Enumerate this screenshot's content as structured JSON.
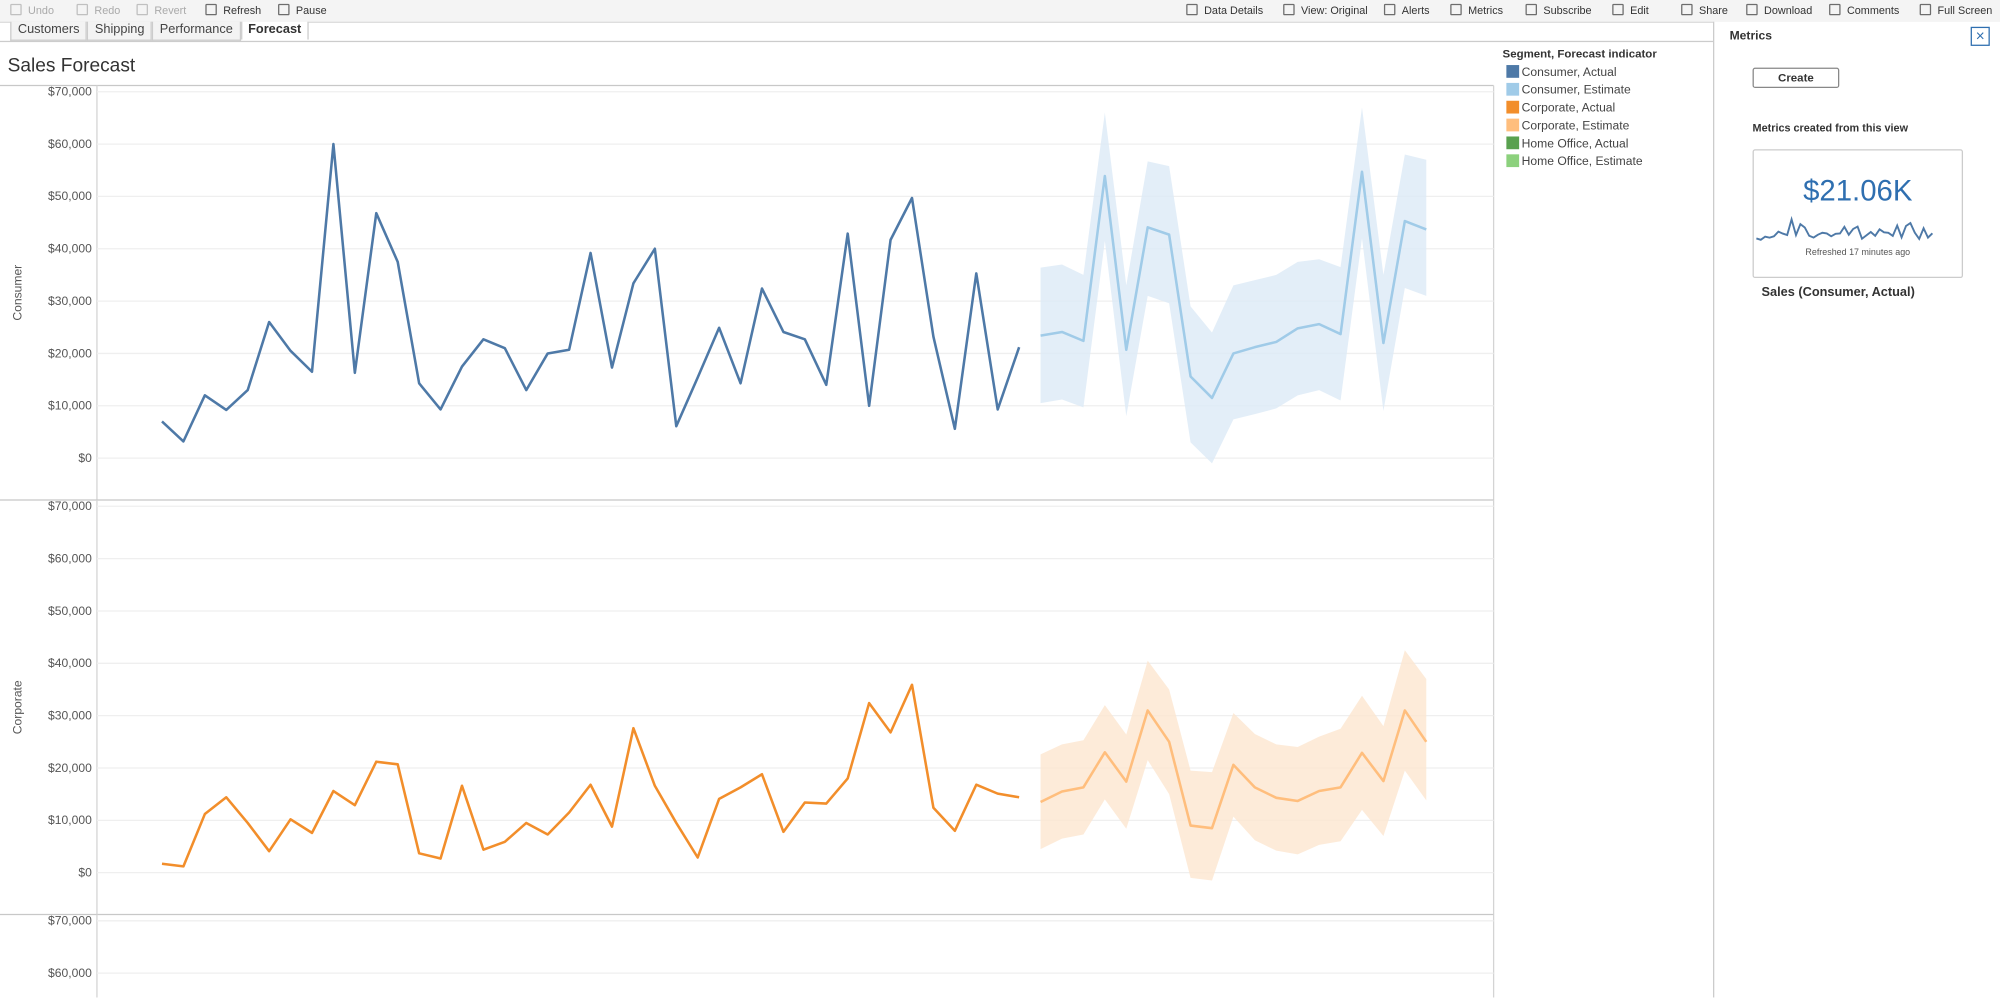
{
  "toolbar": {
    "left": [
      "Undo",
      "Redo",
      "Revert",
      "Refresh",
      "Pause"
    ],
    "right": [
      "Data Details",
      "View: Original",
      "Alerts",
      "Metrics",
      "Subscribe",
      "Edit",
      "Share",
      "Download",
      "Comments",
      "Full Screen"
    ]
  },
  "tabs": [
    "Customers",
    "Shipping",
    "Performance",
    "Forecast"
  ],
  "legend": {
    "title": "Segment, Forecast indicator",
    "items": [
      {
        "label": "Consumer, Actual",
        "color": "#4e79a7"
      },
      {
        "label": "Consumer, Estimate",
        "color": "#a0cbe8"
      },
      {
        "label": "Corporate, Actual",
        "color": "#f28e2b"
      },
      {
        "label": "Corporate, Estimate",
        "color": "#ffbe7d"
      },
      {
        "label": "Home Office, Actual",
        "color": "#59a14f"
      },
      {
        "label": "Home Office, Estimate",
        "color": "#8cd17d"
      }
    ]
  },
  "chart_data": [
    {
      "type": "line",
      "title": "Sales Forecast",
      "y_label": "Consumer",
      "ylim": [
        -8000,
        71200
      ],
      "grid": true,
      "yticks": [
        {
          "value": 0,
          "label": "$0"
        },
        {
          "value": 10000,
          "label": "$10,000"
        },
        {
          "value": 20000,
          "label": "$20,000"
        },
        {
          "value": 30000,
          "label": "$30,000"
        },
        {
          "value": 40000,
          "label": "$40,000"
        },
        {
          "value": 50000,
          "label": "$50,000"
        },
        {
          "value": 60000,
          "label": "$60,000"
        },
        {
          "value": 70000,
          "label": "$70,000"
        }
      ],
      "series": [
        {
          "color": "#4e79a7",
          "values": [
            7000,
            3200,
            12000,
            9200,
            13000,
            26000,
            20500,
            16500,
            60000,
            16300,
            46800,
            37500,
            14300,
            9300,
            17500,
            22700,
            21000,
            13000,
            20000,
            20700,
            39200,
            17300,
            33400,
            40000,
            6100,
            15400,
            24900,
            14300,
            32400,
            24100,
            22700,
            14000,
            42900,
            10000,
            41700,
            49700,
            23200,
            5600,
            35300,
            9300,
            21200,
            null,
            null,
            null,
            null,
            null,
            null,
            null,
            null,
            null,
            null,
            null,
            null,
            null,
            null,
            null,
            null,
            null,
            null,
            null
          ]
        },
        {
          "color": "#a0cbe8",
          "band_color": "#dceaf6",
          "values": [
            null,
            null,
            null,
            null,
            null,
            null,
            null,
            null,
            null,
            null,
            null,
            null,
            null,
            null,
            null,
            null,
            null,
            null,
            null,
            null,
            null,
            null,
            null,
            null,
            null,
            null,
            null,
            null,
            null,
            null,
            null,
            null,
            null,
            null,
            null,
            null,
            null,
            null,
            null,
            null,
            null,
            23400,
            24100,
            22400,
            53900,
            20700,
            44100,
            42700,
            15600,
            11500,
            20000,
            21200,
            22200,
            24800,
            25600,
            23700,
            54700,
            22000,
            45300,
            43700
          ],
          "upper": [
            null,
            null,
            null,
            null,
            null,
            null,
            null,
            null,
            null,
            null,
            null,
            null,
            null,
            null,
            null,
            null,
            null,
            null,
            null,
            null,
            null,
            null,
            null,
            null,
            null,
            null,
            null,
            null,
            null,
            null,
            null,
            null,
            null,
            null,
            null,
            null,
            null,
            null,
            null,
            null,
            null,
            36400,
            37000,
            35000,
            66000,
            33000,
            56700,
            55800,
            29000,
            24000,
            33000,
            34000,
            35000,
            37500,
            38000,
            36500,
            67000,
            35000,
            58000,
            57000
          ],
          "lower": [
            null,
            null,
            null,
            null,
            null,
            null,
            null,
            null,
            null,
            null,
            null,
            null,
            null,
            null,
            null,
            null,
            null,
            null,
            null,
            null,
            null,
            null,
            null,
            null,
            null,
            null,
            null,
            null,
            null,
            null,
            null,
            null,
            null,
            null,
            null,
            null,
            null,
            null,
            null,
            null,
            null,
            10500,
            11200,
            9700,
            41500,
            8000,
            31000,
            29600,
            3000,
            -1000,
            7400,
            8400,
            9500,
            12000,
            13000,
            11000,
            42000,
            9000,
            32500,
            31000
          ]
        }
      ]
    },
    {
      "type": "line",
      "y_label": "Corporate",
      "ylim": [
        -8000,
        71200
      ],
      "grid": true,
      "yticks": [
        {
          "value": 0,
          "label": "$0"
        },
        {
          "value": 10000,
          "label": "$10,000"
        },
        {
          "value": 20000,
          "label": "$20,000"
        },
        {
          "value": 30000,
          "label": "$30,000"
        },
        {
          "value": 40000,
          "label": "$40,000"
        },
        {
          "value": 50000,
          "label": "$50,000"
        },
        {
          "value": 60000,
          "label": "$60,000"
        },
        {
          "value": 70000,
          "label": "$70,000"
        }
      ],
      "series": [
        {
          "color": "#f28e2b",
          "values": [
            1700,
            1200,
            11200,
            14400,
            9500,
            4100,
            10200,
            7600,
            15600,
            12900,
            21200,
            20700,
            3700,
            2700,
            16600,
            4400,
            5900,
            9500,
            7300,
            11500,
            16800,
            8800,
            27600,
            16600,
            9500,
            2900,
            14100,
            16300,
            18800,
            7800,
            13400,
            13200,
            18000,
            32400,
            26800,
            35900,
            12400,
            8000,
            16800,
            15100,
            14400,
            null,
            null,
            null,
            null,
            null,
            null,
            null,
            null,
            null,
            null,
            null,
            null,
            null,
            null,
            null,
            null,
            null,
            null,
            null
          ]
        },
        {
          "color": "#ffbe7d",
          "band_color": "#fde6cf",
          "values": [
            null,
            null,
            null,
            null,
            null,
            null,
            null,
            null,
            null,
            null,
            null,
            null,
            null,
            null,
            null,
            null,
            null,
            null,
            null,
            null,
            null,
            null,
            null,
            null,
            null,
            null,
            null,
            null,
            null,
            null,
            null,
            null,
            null,
            null,
            null,
            null,
            null,
            null,
            null,
            null,
            null,
            13500,
            15500,
            16300,
            23000,
            17400,
            31000,
            25000,
            9000,
            8500,
            20600,
            16300,
            14300,
            13700,
            15600,
            16300,
            22900,
            17500,
            31000,
            25000
          ],
          "upper": [
            null,
            null,
            null,
            null,
            null,
            null,
            null,
            null,
            null,
            null,
            null,
            null,
            null,
            null,
            null,
            null,
            null,
            null,
            null,
            null,
            null,
            null,
            null,
            null,
            null,
            null,
            null,
            null,
            null,
            null,
            null,
            null,
            null,
            null,
            null,
            null,
            null,
            null,
            null,
            null,
            null,
            22600,
            24500,
            25300,
            32000,
            26400,
            40500,
            35000,
            19500,
            19200,
            30500,
            26500,
            24500,
            24000,
            26000,
            27500,
            33800,
            28000,
            42500,
            37000
          ],
          "lower": [
            null,
            null,
            null,
            null,
            null,
            null,
            null,
            null,
            null,
            null,
            null,
            null,
            null,
            null,
            null,
            null,
            null,
            null,
            null,
            null,
            null,
            null,
            null,
            null,
            null,
            null,
            null,
            null,
            null,
            null,
            null,
            null,
            null,
            null,
            null,
            null,
            null,
            null,
            null,
            null,
            null,
            4500,
            6500,
            7300,
            14000,
            8400,
            21500,
            15000,
            -1000,
            -1500,
            10700,
            6200,
            4200,
            3500,
            5300,
            6000,
            12000,
            7000,
            19500,
            13800
          ]
        }
      ]
    },
    {
      "type": "line",
      "ylim": [
        -8000,
        71200
      ],
      "grid": true,
      "yticks": [
        {
          "value": 60000,
          "label": "$60,000"
        },
        {
          "value": 70000,
          "label": "$70,000"
        }
      ],
      "series": []
    }
  ],
  "metrics_panel": {
    "title": "Metrics",
    "button": "Create",
    "section": "Metrics created from this view",
    "card": {
      "value": "$21.06K",
      "refreshed": "Refreshed 17 minutes ago",
      "name": "Sales (Consumer, Actual)"
    }
  }
}
